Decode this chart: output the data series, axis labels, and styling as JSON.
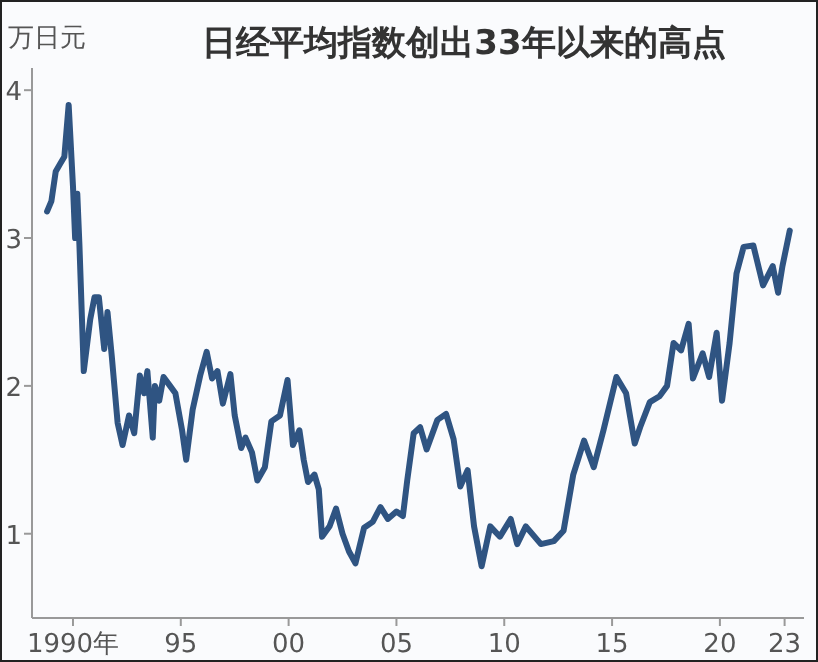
{
  "chart_data": {
    "type": "line",
    "title": "日经平均指数创出33年以来的高点",
    "ylabel": "万日元",
    "x": [
      1988.8,
      1989.0,
      1989.2,
      1989.4,
      1989.6,
      1989.8,
      1990.0,
      1990.1,
      1990.2,
      1990.3,
      1990.5,
      1990.8,
      1991.0,
      1991.2,
      1991.45,
      1991.6,
      1991.8,
      1992.07,
      1992.3,
      1992.6,
      1992.84,
      1993.1,
      1993.3,
      1993.45,
      1993.7,
      1993.8,
      1994.0,
      1994.2,
      1994.5,
      1994.75,
      1995.06,
      1995.25,
      1995.55,
      1995.9,
      1996.2,
      1996.45,
      1996.7,
      1996.95,
      1997.3,
      1997.5,
      1997.8,
      1998.0,
      1998.3,
      1998.55,
      1998.9,
      1999.2,
      1999.6,
      1999.95,
      2000.2,
      2000.5,
      2000.7,
      2000.9,
      2001.2,
      2001.4,
      2001.55,
      2001.9,
      2002.2,
      2002.5,
      2002.8,
      2003.1,
      2003.5,
      2003.9,
      2004.26,
      2004.6,
      2005.0,
      2005.3,
      2005.5,
      2005.8,
      2006.1,
      2006.4,
      2006.9,
      2007.3,
      2007.65,
      2007.96,
      2008.3,
      2008.6,
      2008.95,
      2009.35,
      2009.8,
      2010.3,
      2010.6,
      2011.0,
      2011.7,
      2012.3,
      2012.75,
      2013.2,
      2013.7,
      2014.15,
      2014.6,
      2015.2,
      2015.65,
      2016.05,
      2016.3,
      2016.75,
      2017.2,
      2017.55,
      2017.85,
      2018.2,
      2018.55,
      2018.75,
      2019.2,
      2019.5,
      2019.85,
      2020.1,
      2020.45,
      2020.77,
      2021.1,
      2021.55,
      2022.0,
      2022.45,
      2022.7,
      2022.9,
      2023.24
    ],
    "values": [
      3.18,
      3.25,
      3.45,
      3.5,
      3.55,
      3.9,
      3.35,
      3.0,
      3.3,
      2.95,
      2.1,
      2.45,
      2.6,
      2.6,
      2.25,
      2.5,
      2.2,
      1.75,
      1.6,
      1.8,
      1.68,
      2.07,
      1.95,
      2.1,
      1.65,
      2.0,
      1.9,
      2.06,
      2.0,
      1.95,
      1.7,
      1.5,
      1.84,
      2.07,
      2.23,
      2.05,
      2.1,
      1.88,
      2.08,
      1.8,
      1.58,
      1.65,
      1.55,
      1.36,
      1.45,
      1.76,
      1.8,
      2.04,
      1.6,
      1.7,
      1.5,
      1.35,
      1.4,
      1.3,
      0.98,
      1.05,
      1.17,
      1.0,
      0.88,
      0.8,
      1.04,
      1.08,
      1.18,
      1.1,
      1.15,
      1.12,
      1.36,
      1.68,
      1.72,
      1.57,
      1.77,
      1.81,
      1.64,
      1.32,
      1.43,
      1.05,
      0.78,
      1.05,
      0.98,
      1.1,
      0.93,
      1.05,
      0.93,
      0.95,
      1.02,
      1.4,
      1.63,
      1.45,
      1.7,
      2.06,
      1.95,
      1.61,
      1.72,
      1.89,
      1.93,
      2.0,
      2.29,
      2.24,
      2.42,
      2.05,
      2.22,
      2.06,
      2.36,
      1.9,
      2.29,
      2.76,
      2.94,
      2.95,
      2.68,
      2.81,
      2.63,
      2.81,
      3.05
    ],
    "color": "#2f5482",
    "xlim": [
      1988.1,
      2023.9
    ],
    "ylim": [
      0.43,
      4.15
    ],
    "xticks": [
      {
        "value": 1990,
        "label": "1990年"
      },
      {
        "value": 1995,
        "label": "95"
      },
      {
        "value": 2000,
        "label": "00"
      },
      {
        "value": 2005,
        "label": "05"
      },
      {
        "value": 2010,
        "label": "10"
      },
      {
        "value": 2015,
        "label": "15"
      },
      {
        "value": 2020,
        "label": "20"
      },
      {
        "value": 2023,
        "label": "23"
      }
    ],
    "yticks": [
      1,
      2,
      3,
      4
    ],
    "grid": false
  }
}
